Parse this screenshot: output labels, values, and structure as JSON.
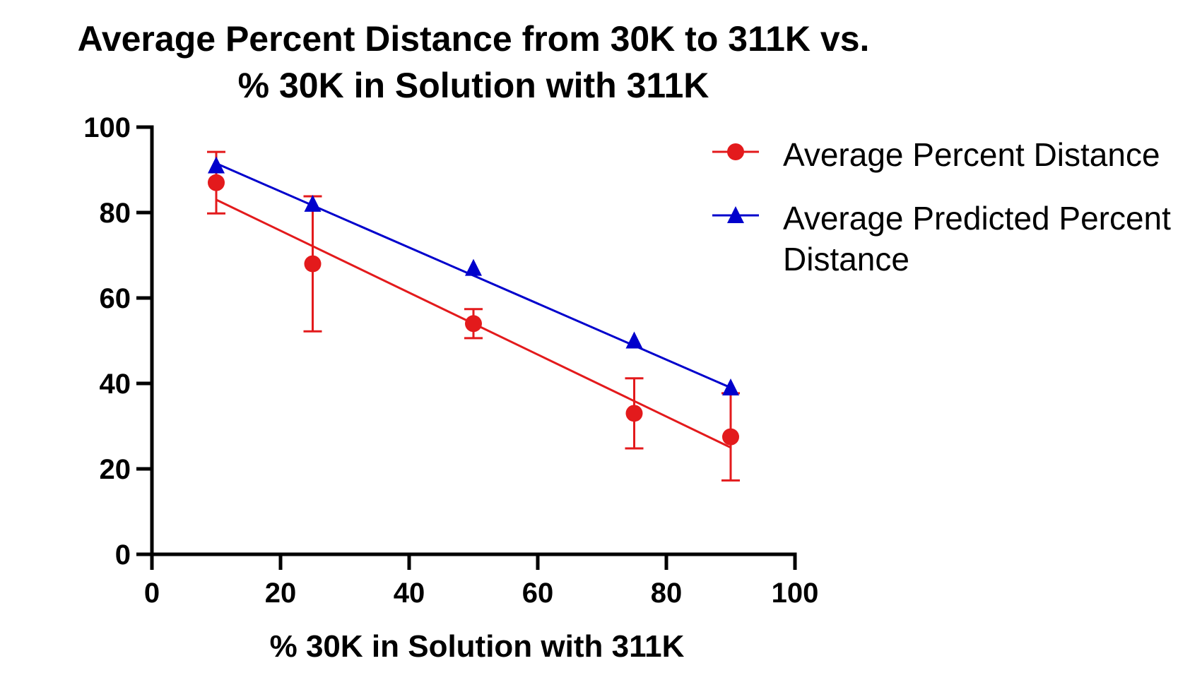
{
  "chart_data": {
    "type": "scatter",
    "title_lines": [
      "Average Percent Distance from 30K to 311K vs.",
      "% 30K in Solution with 311K"
    ],
    "xlabel": "% 30K in Solution with 311K",
    "ylabel": "",
    "xlim": [
      0,
      100
    ],
    "ylim": [
      0,
      100
    ],
    "x_ticks": [
      0,
      20,
      40,
      60,
      80,
      100
    ],
    "y_ticks": [
      0,
      20,
      40,
      60,
      80,
      100
    ],
    "grid": false,
    "legend_position": "right",
    "series": [
      {
        "name": "Average Percent Distance",
        "color": "#e31a1c",
        "marker": "circle",
        "x": [
          10,
          25,
          50,
          75,
          90
        ],
        "y": [
          87,
          68,
          54,
          33,
          27.5
        ],
        "error": [
          7.2,
          15.8,
          3.4,
          8.2,
          10.2
        ],
        "fit_line": {
          "x": [
            10,
            90
          ],
          "y": [
            83,
            25
          ]
        }
      },
      {
        "name": "Average Predicted Percent Distance",
        "color": "#0000cc",
        "marker": "triangle",
        "x": [
          10,
          25,
          50,
          75,
          90
        ],
        "y": [
          91,
          82,
          67,
          50,
          39
        ],
        "fit_line": {
          "x": [
            10,
            90
          ],
          "y": [
            91.5,
            39
          ]
        }
      }
    ]
  }
}
